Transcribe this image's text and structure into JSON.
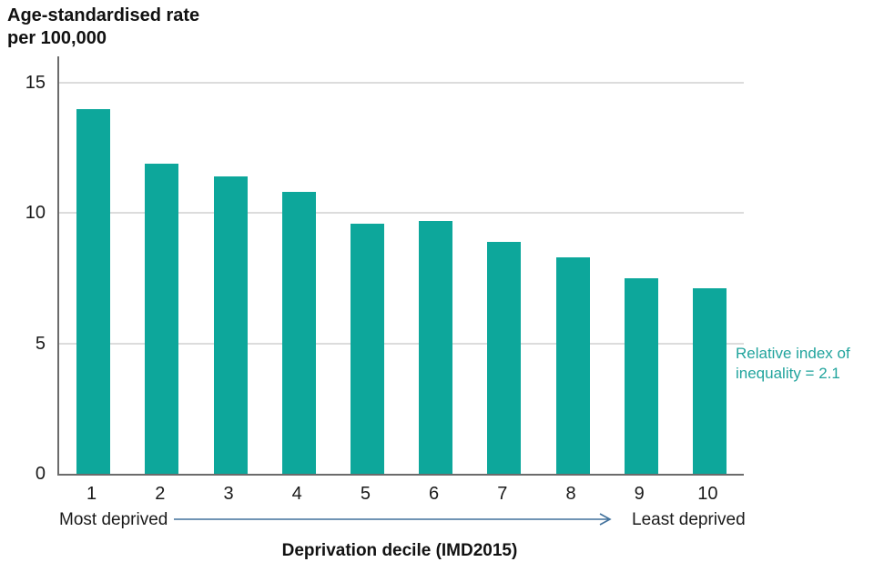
{
  "chart_data": {
    "type": "bar",
    "categories": [
      "1",
      "2",
      "3",
      "4",
      "5",
      "6",
      "7",
      "8",
      "9",
      "10"
    ],
    "values": [
      14.0,
      11.9,
      11.4,
      10.8,
      9.6,
      9.7,
      8.9,
      8.3,
      7.5,
      7.1
    ],
    "ylabel_lines": [
      "Age-standardised rate",
      "per 100,000"
    ],
    "xlabel": "Deprivation decile (IMD2015)",
    "ylim": [
      0,
      15
    ],
    "yticks": [
      0,
      5,
      10,
      15
    ],
    "grid": true,
    "legend": "none",
    "x_axis_notes": {
      "left": "Most deprived",
      "right": "Least deprived"
    },
    "annotation": {
      "lines": [
        "Relative index of",
        "inequality = 2.1"
      ]
    }
  },
  "colors": {
    "bar": "#0da79b",
    "annotation_text": "#21a49d",
    "arrow": "#41719c",
    "grid": "#dcdcdc",
    "axis": "#6b6b6b",
    "text": "#1a1a1a"
  }
}
